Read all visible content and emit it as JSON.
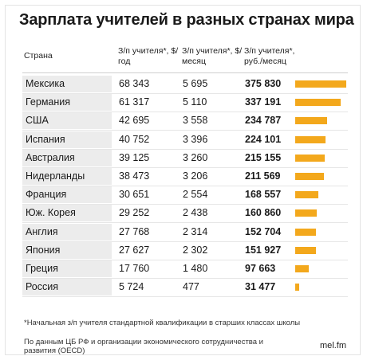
{
  "chart_data": {
    "type": "table",
    "title": "Зарплата учителей в разных странах мира",
    "columns": [
      "Страна",
      "З/п учителя*, $/год",
      "З/п учителя*, $/месяц",
      "З/п учителя*, руб./месяц"
    ],
    "rows": [
      {
        "country": "Мексика",
        "usd_year": "68 343",
        "usd_month": "5 695",
        "rub_month": "375 830",
        "value": 375830
      },
      {
        "country": "Германия",
        "usd_year": "61 317",
        "usd_month": "5 110",
        "rub_month": "337 191",
        "value": 337191
      },
      {
        "country": "США",
        "usd_year": "42 695",
        "usd_month": "3 558",
        "rub_month": "234 787",
        "value": 234787
      },
      {
        "country": "Испания",
        "usd_year": "40 752",
        "usd_month": "3 396",
        "rub_month": "224 101",
        "value": 224101
      },
      {
        "country": "Австралия",
        "usd_year": "39 125",
        "usd_month": "3 260",
        "rub_month": "215 155",
        "value": 215155
      },
      {
        "country": "Нидерланды",
        "usd_year": "38 473",
        "usd_month": "3 206",
        "rub_month": "211 569",
        "value": 211569
      },
      {
        "country": "Франция",
        "usd_year": "30 651",
        "usd_month": "2 554",
        "rub_month": "168 557",
        "value": 168557
      },
      {
        "country": "Юж. Корея",
        "usd_year": "29 252",
        "usd_month": "2 438",
        "rub_month": "160 860",
        "value": 160860
      },
      {
        "country": "Англия",
        "usd_year": "27 768",
        "usd_month": "2 314",
        "rub_month": "152 704",
        "value": 152704
      },
      {
        "country": "Япония",
        "usd_year": "27 627",
        "usd_month": "2 302",
        "rub_month": "151 927",
        "value": 151927
      },
      {
        "country": "Греция",
        "usd_year": "17 760",
        "usd_month": "1 480",
        "rub_month": "97 663",
        "value": 97663
      },
      {
        "country": "Россия",
        "usd_year": "5 724",
        "usd_month": "477",
        "rub_month": "31 477",
        "value": 31477
      }
    ],
    "bar_color": "#f3a81c",
    "footnote": "*Начальная з/п учителя стандартной квалификации в старших классах школы",
    "source": "По данным ЦБ РФ и организации экономического сотрудничества и развития (OECD)",
    "brand": "mel.fm"
  }
}
